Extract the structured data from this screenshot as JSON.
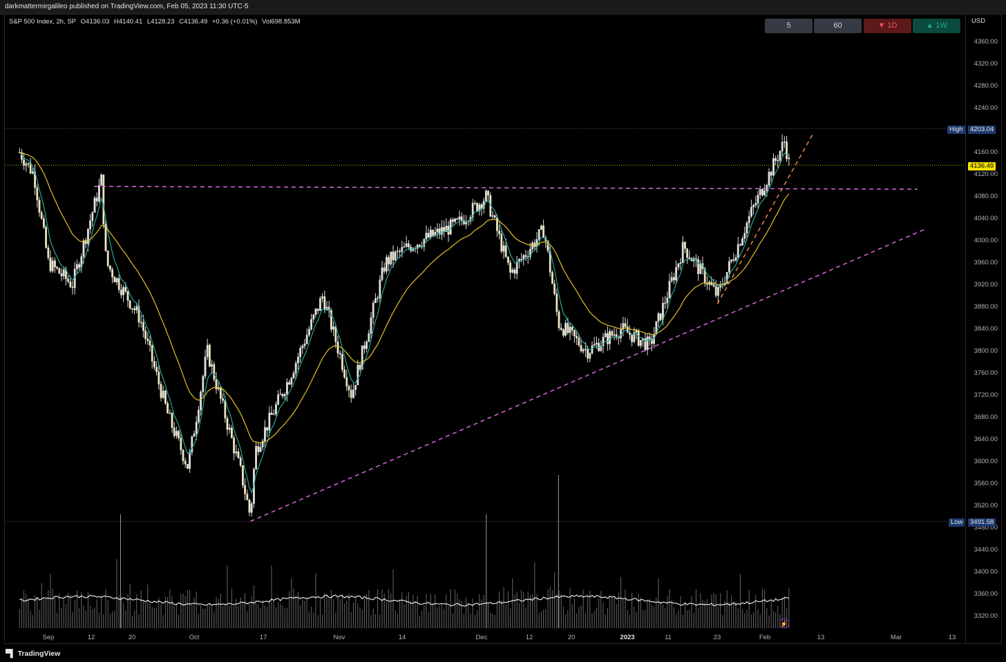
{
  "publication": "darkmattermirgalileo published on TradingView.com, Feb 05, 2023 11:30 UTC-5",
  "legend": {
    "symbol": "S&P 500 Index, 2h, SP",
    "open": "O4136.03",
    "high": "H4140.41",
    "low": "L4128.23",
    "close": "C4136.49",
    "change": "+0.36 (+0.01%)",
    "volume": "Vol698.853M"
  },
  "timeframe_buttons": [
    {
      "label": "5",
      "bg": "#363a45",
      "fg": "#d1d4dc"
    },
    {
      "label": "60",
      "bg": "#363a45",
      "fg": "#d1d4dc"
    },
    {
      "label": "▼ 1D",
      "bg": "#5c1a1b",
      "fg": "#f7525f"
    },
    {
      "label": "▲ 1W",
      "bg": "#0b4a3e",
      "fg": "#22ab94"
    }
  ],
  "price_axis": {
    "currency": "USD",
    "labels": [
      "4360.00",
      "4320.00",
      "4280.00",
      "4240.00",
      "4160.00",
      "4120.00",
      "4080.00",
      "4040.00",
      "4000.00",
      "3960.00",
      "3920.00",
      "3880.00",
      "3840.00",
      "3800.00",
      "3760.00",
      "3720.00",
      "3680.00",
      "3640.00",
      "3600.00",
      "3560.00",
      "3520.00",
      "3480.00",
      "3440.00",
      "3400.00",
      "3360.00",
      "3320.00"
    ]
  },
  "tags": {
    "high_label": "High",
    "high_value": "4203.04",
    "current_value": "4136.49",
    "low_label": "Low",
    "low_value": "3491.58"
  },
  "time_axis": [
    "Sep",
    "12",
    "20",
    "Oct",
    "17",
    "Nov",
    "14",
    "Dec",
    "12",
    "20",
    "2023",
    "11",
    "23",
    "Feb",
    "13",
    "Mar",
    "13"
  ],
  "footer_brand": "TradingView",
  "colors": {
    "ema_fast": "#26a69a",
    "ema_slow": "#e6c229",
    "trendline": "#d86adf",
    "trendline_short": "#f0883e",
    "candle": "#e0e0e0",
    "candle_up_fill": "#f2e6b5",
    "current_price": "#f5e000",
    "high_low_tag": "#1e3a6e"
  },
  "chart_data": {
    "type": "candlestick",
    "symbol": "S&P 500 Index",
    "interval": "2h",
    "ylim": [
      3480,
      4370
    ],
    "overall_high": 4203.04,
    "overall_low": 3491.58,
    "last_close": 4136.49,
    "close_path": [
      {
        "date": "Aug 26",
        "close": 4160
      },
      {
        "date": "Aug 29",
        "close": 4120
      },
      {
        "date": "Sep 1",
        "close": 3960
      },
      {
        "date": "Sep 6",
        "close": 3920
      },
      {
        "date": "Sep 12",
        "close": 4110
      },
      {
        "date": "Sep 13",
        "close": 3960
      },
      {
        "date": "Sep 20",
        "close": 3860
      },
      {
        "date": "Sep 26",
        "close": 3680
      },
      {
        "date": "Sep 30",
        "close": 3590
      },
      {
        "date": "Oct 4",
        "close": 3800
      },
      {
        "date": "Oct 11",
        "close": 3580
      },
      {
        "date": "Oct 13",
        "close": 3500
      },
      {
        "date": "Oct 14",
        "close": 3620
      },
      {
        "date": "Oct 21",
        "close": 3750
      },
      {
        "date": "Oct 28",
        "close": 3900
      },
      {
        "date": "Nov 3",
        "close": 3720
      },
      {
        "date": "Nov 10",
        "close": 3960
      },
      {
        "date": "Nov 15",
        "close": 3990
      },
      {
        "date": "Nov 25",
        "close": 4030
      },
      {
        "date": "Dec 1",
        "close": 4080
      },
      {
        "date": "Dec 6",
        "close": 3940
      },
      {
        "date": "Dec 13",
        "close": 4020
      },
      {
        "date": "Dec 16",
        "close": 3850
      },
      {
        "date": "Dec 22",
        "close": 3800
      },
      {
        "date": "Dec 29",
        "close": 3840
      },
      {
        "date": "Jan 5",
        "close": 3810
      },
      {
        "date": "Jan 12",
        "close": 3990
      },
      {
        "date": "Jan 19",
        "close": 3900
      },
      {
        "date": "Jan 26",
        "close": 4050
      },
      {
        "date": "Feb 2",
        "close": 4180
      },
      {
        "date": "Feb 3",
        "close": 4136.49
      }
    ],
    "horizontal_resistance": 4095,
    "trendlines": [
      {
        "name": "rising support",
        "from": {
          "date": "Oct 13",
          "price": 3491.58
        },
        "to": {
          "date": "Mar 3",
          "price": 4020
        }
      },
      {
        "name": "short-term support",
        "from": {
          "date": "Jan 19",
          "price": 3885
        },
        "to": {
          "date": "Feb 8",
          "price": 4195
        }
      }
    ],
    "moving_averages": [
      "fast EMA",
      "slow EMA"
    ],
    "volume_spikes": [
      {
        "date": "Sep 16",
        "relative": "high"
      },
      {
        "date": "Dec 1",
        "relative": "high"
      },
      {
        "date": "Dec 16",
        "relative": "highest"
      }
    ],
    "grid": false
  }
}
